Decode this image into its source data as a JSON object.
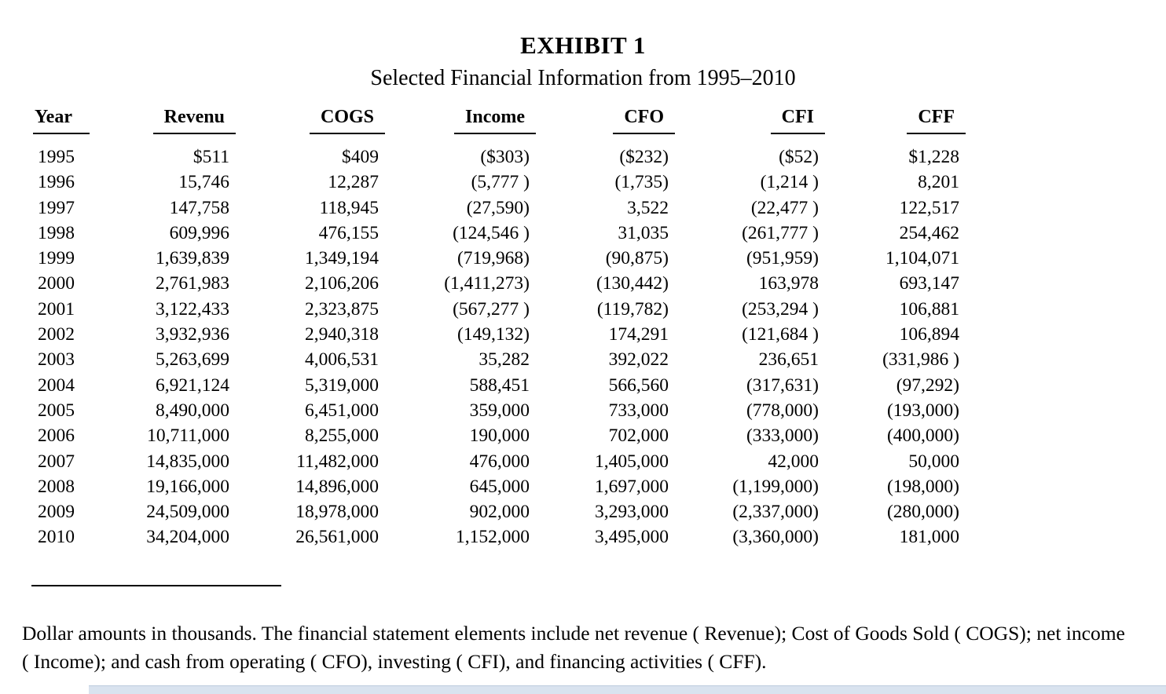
{
  "title": "EXHIBIT 1",
  "subtitle": "Selected Financial Information from 1995–2010",
  "table": {
    "columns": [
      "Year",
      "Revenu",
      "COGS",
      "Income",
      "CFO",
      "CFI",
      "CFF"
    ],
    "rows": [
      [
        "1995",
        "$511",
        "$409",
        "($303)",
        "($232)",
        "($52)",
        "$1,228"
      ],
      [
        "1996",
        "15,746",
        "12,287",
        "(5,777 )",
        "(1,735)",
        "(1,214 )",
        "8,201"
      ],
      [
        "1997",
        "147,758",
        "118,945",
        "(27,590)",
        "3,522",
        "(22,477 )",
        "122,517"
      ],
      [
        "1998",
        "609,996",
        "476,155",
        "(124,546 )",
        "31,035",
        "(261,777 )",
        "254,462"
      ],
      [
        "1999",
        "1,639,839",
        "1,349,194",
        "(719,968)",
        "(90,875)",
        "(951,959)",
        "1,104,071"
      ],
      [
        "2000",
        "2,761,983",
        "2,106,206",
        "(1,411,273)",
        "(130,442)",
        "163,978",
        "693,147"
      ],
      [
        "2001",
        "3,122,433",
        "2,323,875",
        "(567,277 )",
        "(119,782)",
        "(253,294 )",
        "106,881"
      ],
      [
        "2002",
        "3,932,936",
        "2,940,318",
        "(149,132)",
        "174,291",
        "(121,684 )",
        "106,894"
      ],
      [
        "2003",
        "5,263,699",
        "4,006,531",
        "35,282",
        "392,022",
        "236,651",
        "(331,986 )"
      ],
      [
        "2004",
        "6,921,124",
        "5,319,000",
        "588,451",
        "566,560",
        "(317,631)",
        "(97,292)"
      ],
      [
        "2005",
        "8,490,000",
        "6,451,000",
        "359,000",
        "733,000",
        "(778,000)",
        "(193,000)"
      ],
      [
        "2006",
        "10,711,000",
        "8,255,000",
        "190,000",
        "702,000",
        "(333,000)",
        "(400,000)"
      ],
      [
        "2007",
        "14,835,000",
        "11,482,000",
        "476,000",
        "1,405,000",
        "42,000",
        "50,000"
      ],
      [
        "2008",
        "19,166,000",
        "14,896,000",
        "645,000",
        "1,697,000",
        "(1,199,000)",
        "(198,000)"
      ],
      [
        "2009",
        "24,509,000",
        "18,978,000",
        "902,000",
        "3,293,000",
        "(2,337,000)",
        "(280,000)"
      ],
      [
        "2010",
        "34,204,000",
        "26,561,000",
        "1,152,000",
        "3,495,000",
        "(3,360,000)",
        "181,000"
      ]
    ]
  },
  "footnote": "Dollar amounts in thousands. The financial statement elements include net revenue ( Revenue); Cost of Goods Sold ( COGS); net income ( Income); and cash from operating ( CFO), investing ( CFI), and financing activities ( CFF)."
}
